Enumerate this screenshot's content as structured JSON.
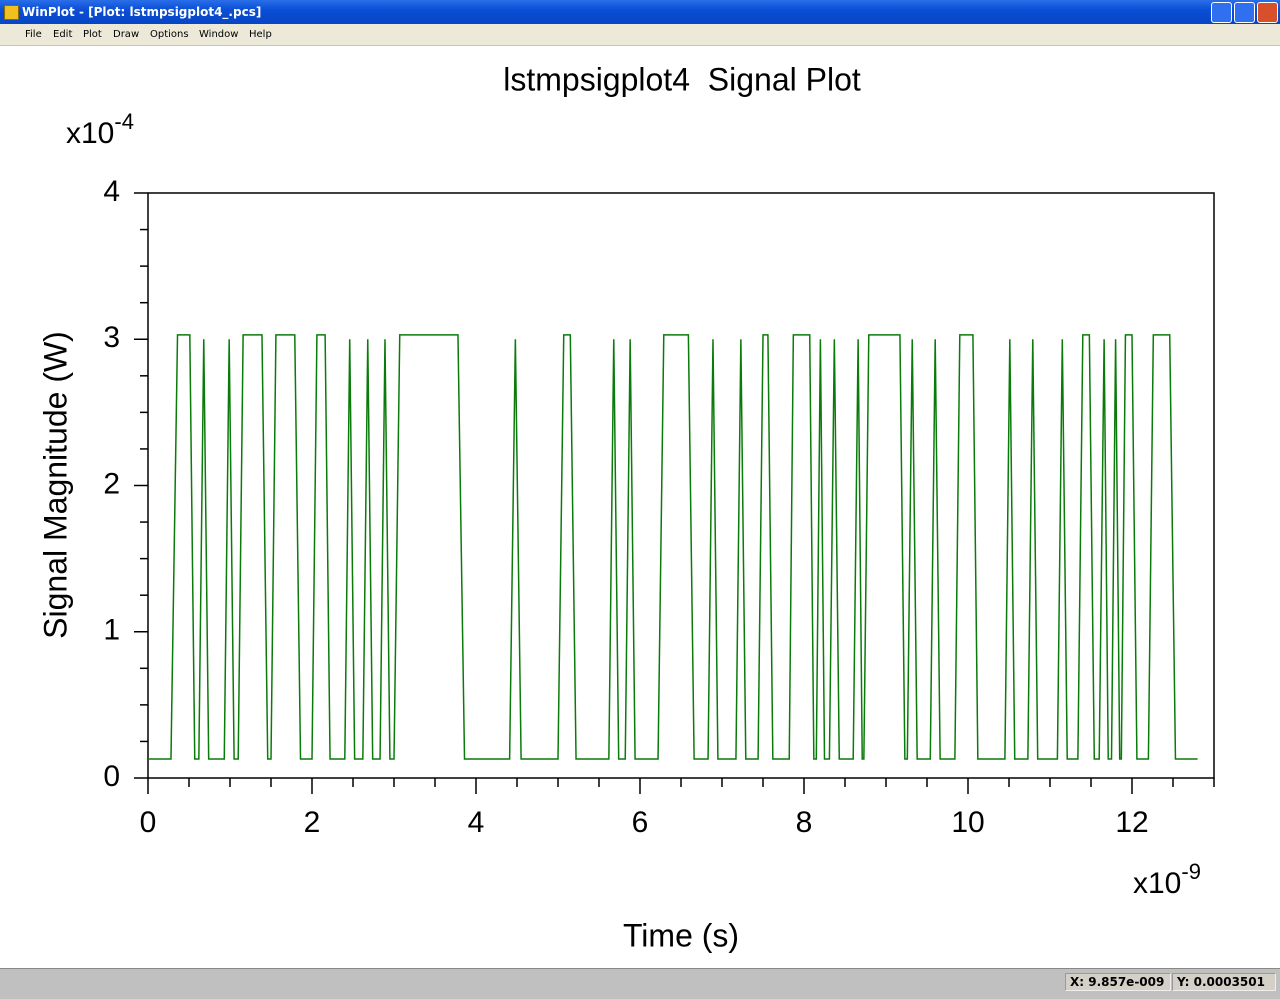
{
  "window": {
    "title": "WinPlot - [Plot: lstmpsigplot4_.pcs]"
  },
  "menu": [
    "File",
    "Edit",
    "Plot",
    "Draw",
    "Options",
    "Window",
    "Help"
  ],
  "status": {
    "x": "X: 9.857e-009",
    "y": "Y: 0.0003501"
  },
  "chart_data": {
    "type": "line",
    "title": "lstmpsigplot4  Signal Plot",
    "x_label": "Time (s)",
    "y_label": "Signal Magnitude (W)",
    "x_scale": {
      "base": "x10",
      "exponent": "-9"
    },
    "y_scale": {
      "base": "x10",
      "exponent": "-4"
    },
    "xlim": [
      0,
      13
    ],
    "ylim": [
      0,
      4
    ],
    "xticks": [
      0,
      2,
      4,
      6,
      8,
      10,
      12
    ],
    "yticks": [
      0,
      1,
      2,
      3,
      4
    ],
    "x_minor_ticks": [
      0.5,
      1,
      1.5,
      2.5,
      3,
      3.5,
      4.5,
      5,
      5.5,
      6.5,
      7,
      7.5,
      8.5,
      9,
      9.5,
      10.5,
      11,
      11.5,
      12.5,
      13
    ],
    "y_minor_ticks": [
      0.25,
      0.5,
      0.75,
      1.25,
      1.5,
      1.75,
      2.25,
      2.5,
      2.75,
      3.25,
      3.5,
      3.75
    ],
    "x": [
      0,
      0.28,
      0.36,
      0.51,
      0.57,
      0.62,
      0.68,
      0.74,
      0.93,
      0.99,
      1.05,
      1.1,
      1.16,
      1.39,
      1.46,
      1.5,
      1.56,
      1.79,
      1.86,
      2.0,
      2.06,
      2.16,
      2.22,
      2.4,
      2.46,
      2.52,
      2.62,
      2.68,
      2.74,
      2.83,
      2.89,
      2.95,
      3.0,
      3.07,
      3.78,
      3.86,
      4.41,
      4.48,
      4.55,
      5.0,
      5.07,
      5.15,
      5.22,
      5.62,
      5.68,
      5.74,
      5.82,
      5.88,
      5.94,
      6.22,
      6.29,
      6.59,
      6.66,
      6.83,
      6.89,
      6.95,
      7.17,
      7.23,
      7.29,
      7.44,
      7.5,
      7.56,
      7.62,
      7.82,
      7.87,
      8.07,
      8.12,
      8.15,
      8.2,
      8.25,
      8.31,
      8.37,
      8.43,
      8.6,
      8.66,
      8.71,
      8.73,
      8.79,
      9.17,
      9.23,
      9.26,
      9.32,
      9.38,
      9.54,
      9.6,
      9.66,
      9.84,
      9.9,
      10.06,
      10.12,
      10.45,
      10.51,
      10.57,
      10.73,
      10.79,
      10.85,
      11.09,
      11.15,
      11.21,
      11.34,
      11.4,
      11.48,
      11.54,
      11.6,
      11.66,
      11.71,
      11.75,
      11.8,
      11.85,
      11.87,
      11.92,
      12.0,
      12.06,
      12.2,
      12.26,
      12.46,
      12.53,
      12.8
    ],
    "series": [
      {
        "color": "#0a7a0a",
        "values": [
          0.13,
          0.13,
          3.03,
          3.03,
          0.13,
          0.13,
          3.0,
          0.13,
          0.13,
          3.0,
          0.13,
          0.13,
          3.03,
          3.03,
          0.13,
          0.13,
          3.03,
          3.03,
          0.13,
          0.13,
          3.03,
          3.03,
          0.13,
          0.13,
          3.0,
          0.13,
          0.13,
          3.0,
          0.13,
          0.13,
          3.0,
          0.13,
          0.13,
          3.03,
          3.03,
          0.13,
          0.13,
          3.0,
          0.13,
          0.13,
          3.03,
          3.03,
          0.13,
          0.13,
          3.0,
          0.13,
          0.13,
          3.0,
          0.13,
          0.13,
          3.03,
          3.03,
          0.13,
          0.13,
          3.0,
          0.13,
          0.13,
          3.0,
          0.13,
          0.13,
          3.03,
          3.03,
          0.13,
          0.13,
          3.03,
          3.03,
          0.13,
          0.13,
          3.0,
          0.13,
          0.13,
          3.0,
          0.13,
          0.13,
          3.0,
          0.13,
          0.13,
          3.03,
          3.03,
          0.13,
          0.13,
          3.0,
          0.13,
          0.13,
          3.0,
          0.13,
          0.13,
          3.03,
          3.03,
          0.13,
          0.13,
          3.0,
          0.13,
          0.13,
          3.0,
          0.13,
          0.13,
          3.0,
          0.13,
          0.13,
          3.03,
          3.03,
          0.13,
          0.13,
          3.0,
          0.13,
          0.13,
          3.0,
          0.13,
          0.13,
          3.03,
          3.03,
          0.13,
          0.13,
          3.03,
          3.03,
          0.13,
          0.13
        ]
      }
    ]
  }
}
